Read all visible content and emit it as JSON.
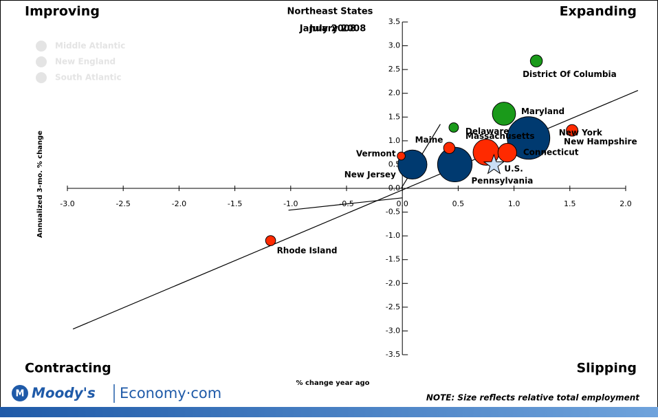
{
  "chart_data": {
    "type": "bubble",
    "title": "Northeast States",
    "period_labels": [
      "January 2008",
      "July 2008"
    ],
    "quadrants": {
      "top_left": "Improving",
      "top_right": "Expanding",
      "bottom_left": "Contracting",
      "bottom_right": "Slipping"
    },
    "x_label": "% change year ago",
    "y_label": "Annualized 3-mo. % change",
    "note": "NOTE: Size reflects relative total employment",
    "logo": {
      "brand": "Moody's",
      "site": "Economy·com"
    },
    "xlim": [
      -3.0,
      2.0
    ],
    "ylim": [
      -3.5,
      3.5
    ],
    "xticks": [
      {
        "value": -3,
        "label": "-3.0"
      },
      -2.5,
      {
        "value": -2,
        "label": "-2.0"
      },
      -1.5,
      {
        "value": -1,
        "label": "-1.0"
      },
      -0.5,
      {
        "value": 0,
        "label": "0.0"
      },
      0.5,
      {
        "value": 1,
        "label": "1.0"
      },
      1.5,
      {
        "value": 2,
        "label": "2.0"
      }
    ],
    "yticks": [
      3.5,
      {
        "value": 3,
        "label": "3.0"
      },
      2.5,
      {
        "value": 2,
        "label": "2.0"
      },
      1.5,
      {
        "value": 1,
        "label": "1.0"
      },
      0.5,
      {
        "value": 0,
        "label": "0.0"
      },
      -0.5,
      {
        "value": -1,
        "label": "-1.0"
      },
      -1.5,
      {
        "value": -2,
        "label": "-2.0"
      },
      -2.5,
      {
        "value": -3,
        "label": "-3.0"
      },
      -3.5
    ],
    "legend_color": "#e4e4e4",
    "series": [
      {
        "name": "Middle Atlantic",
        "color": "#003a70",
        "labels": [
          "New Jersey",
          "Pennsylvania",
          "New York"
        ],
        "x": [
          0.09,
          0.47,
          1.13
        ],
        "y": [
          0.5,
          0.5,
          1.06
        ],
        "sizes": [
          4100,
          5800,
          8800
        ]
      },
      {
        "name": "New England",
        "color": "#ff2a00",
        "labels": [
          "Rhode Island",
          "Vermont",
          "Maine",
          "Massachusetts",
          "Connecticut",
          "New Hampshire"
        ],
        "x": [
          -1.18,
          -0.01,
          0.42,
          0.75,
          0.94,
          1.52
        ],
        "y": [
          -1.1,
          0.68,
          0.85,
          0.76,
          0.75,
          1.22
        ],
        "sizes": [
          490,
          310,
          620,
          3300,
          1700,
          650
        ]
      },
      {
        "name": "South Atlantic",
        "color": "#1a9a1a",
        "labels": [
          "Delaware",
          "Maryland",
          "District Of Columbia"
        ],
        "x": [
          0.46,
          0.91,
          1.2
        ],
        "y": [
          1.28,
          1.57,
          2.68
        ],
        "sizes": [
          440,
          2600,
          700
        ]
      }
    ],
    "benchmark": {
      "label": "U.S.",
      "x": 0.82,
      "y": 0.49,
      "color": "#c9def5"
    },
    "trend_lines": [
      {
        "x": [
          -2.95,
          2.11
        ],
        "y": [
          -2.96,
          2.06
        ]
      },
      {
        "x": [
          -1.02,
          0.0
        ],
        "y": [
          -0.46,
          -0.2
        ]
      },
      {
        "x": [
          -0.01,
          0.34
        ],
        "y": [
          0.0,
          1.35
        ]
      }
    ]
  }
}
